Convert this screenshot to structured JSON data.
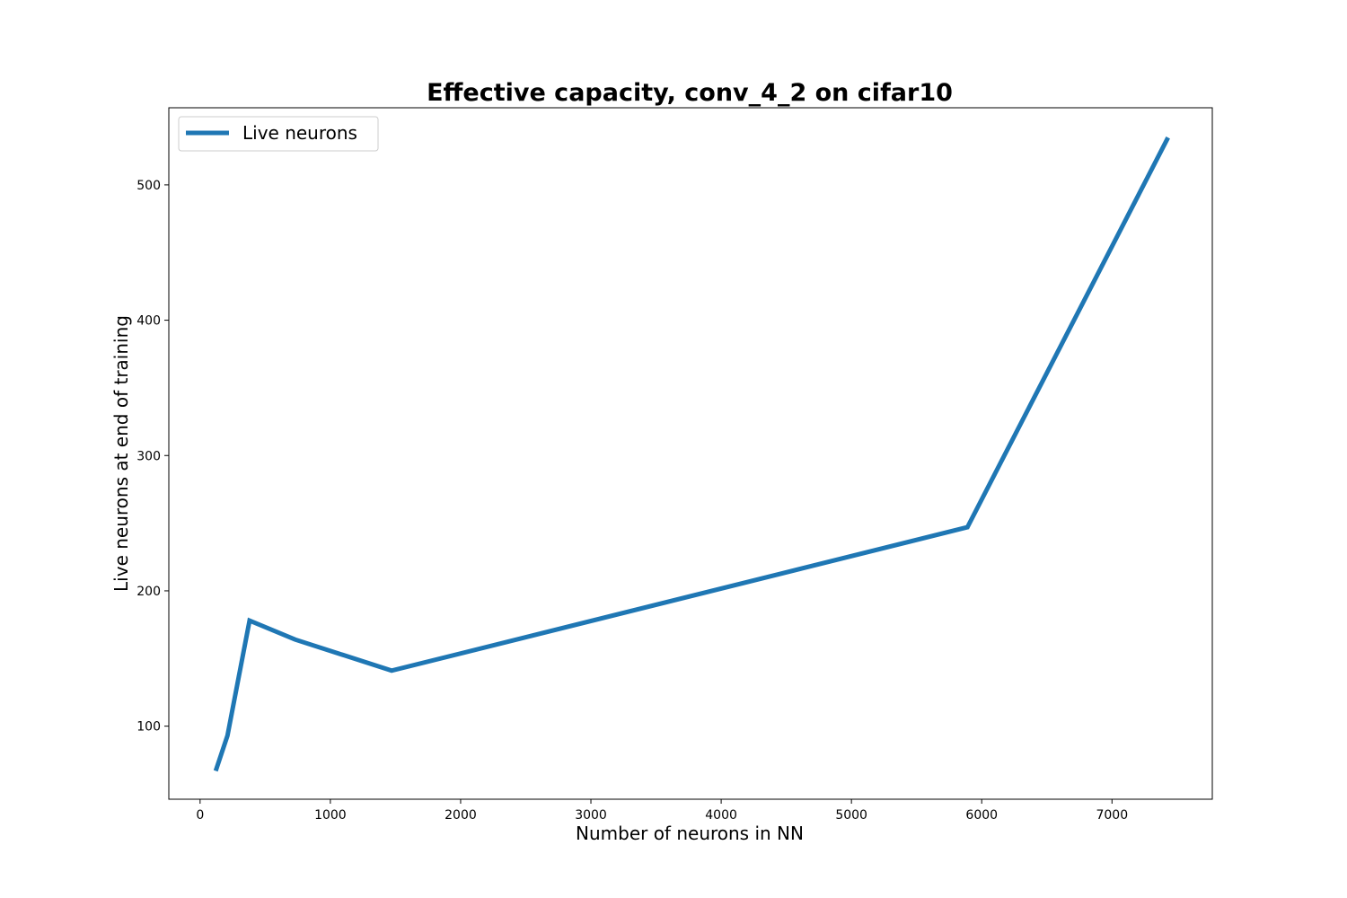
{
  "chart_data": {
    "type": "line",
    "title": "Effective capacity, conv_4_2 on cifar10",
    "xlabel": "Number of neurons in NN",
    "ylabel": "Live neurons at end of training",
    "xlim": [
      -240,
      7770
    ],
    "ylim": [
      46,
      557
    ],
    "xticks": [
      0,
      1000,
      2000,
      3000,
      4000,
      5000,
      6000,
      7000
    ],
    "yticks": [
      100,
      200,
      300,
      400,
      500
    ],
    "grid": false,
    "legend_position": "top-left",
    "series": [
      {
        "name": "Live neurons",
        "color": "#1f77b4",
        "x": [
          120,
          210,
          380,
          730,
          1470,
          5890,
          7430
        ],
        "y": [
          67,
          93,
          178,
          164,
          141,
          247,
          535
        ]
      }
    ]
  }
}
